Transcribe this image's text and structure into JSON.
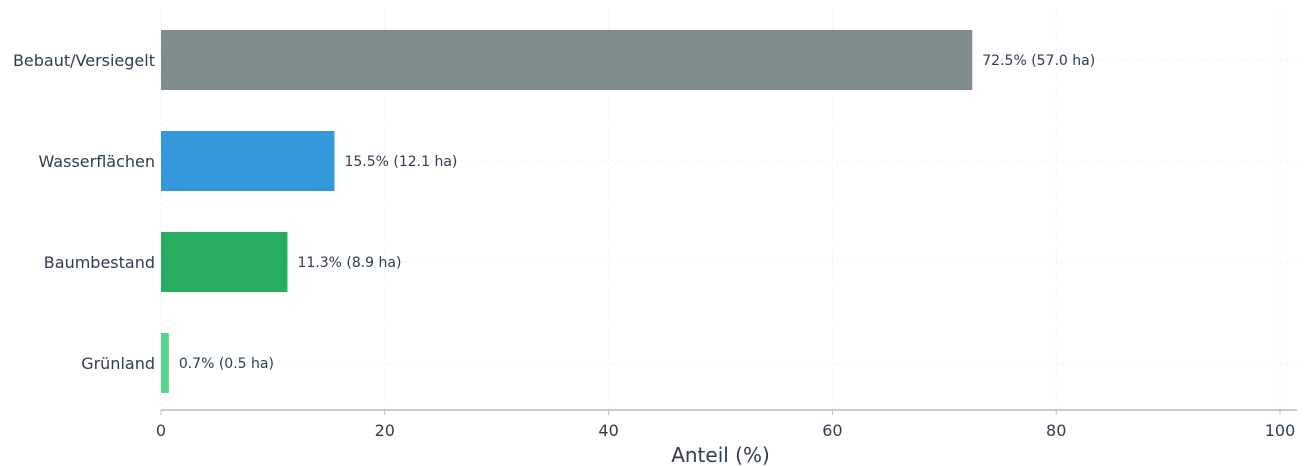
{
  "chart_data": {
    "type": "bar",
    "orientation": "horizontal",
    "title": "",
    "xlabel": "Anteil (%)",
    "ylabel": "",
    "xlim": [
      0,
      100
    ],
    "xticks": [
      0,
      20,
      40,
      60,
      80,
      100
    ],
    "grid": true,
    "categories": [
      "Bebaut/Versiegelt",
      "Wasserflächen",
      "Baumbestand",
      "Grünland"
    ],
    "values": [
      72.5,
      15.5,
      11.3,
      0.7
    ],
    "hectares": [
      57.0,
      12.1,
      8.9,
      0.5
    ],
    "data_labels": [
      "72.5%  (57.0 ha)",
      "15.5%  (12.1 ha)",
      "11.3%  (8.9 ha)",
      "0.7%  (0.5 ha)"
    ],
    "colors": [
      "#7f8c8d",
      "#3498db",
      "#27ae60",
      "#58d68d"
    ],
    "axis_color": "#bbbbbb",
    "text_color": "#2c3e50"
  }
}
